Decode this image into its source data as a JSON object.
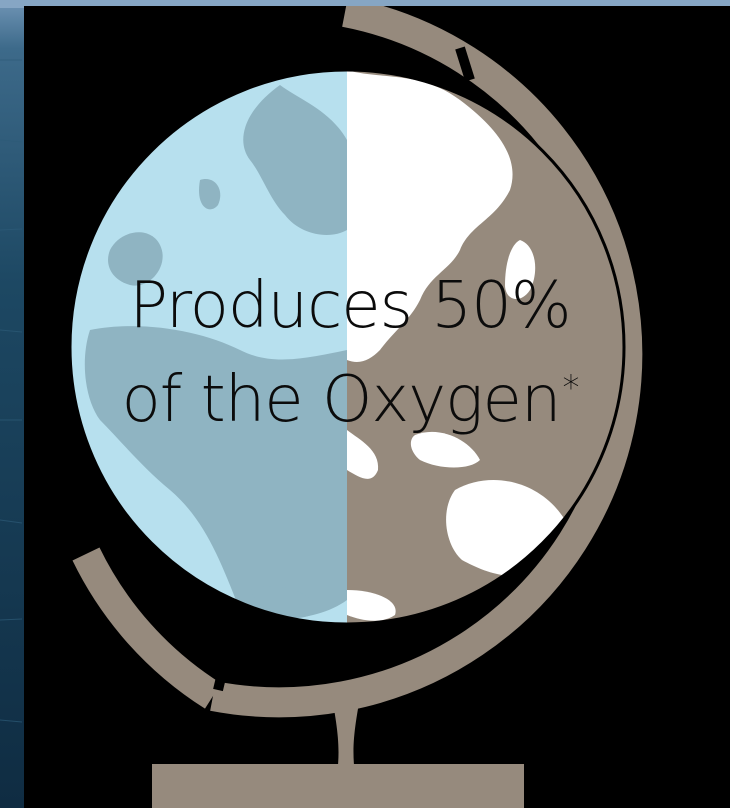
{
  "headline": {
    "line1": "Produces 50%",
    "line2": "of the Oxygen",
    "asterisk": "*"
  },
  "colors": {
    "background": "#000000",
    "ocean_light": "#6f93b5",
    "ocean_dark": "#14354f",
    "globe_ocean": "#b7e0ee",
    "globe_land_left": "#8fb4c2",
    "globe_brown": "#968a7d",
    "land_white": "#ffffff",
    "text": "#0b0b0b"
  },
  "icons": [
    "globe-icon"
  ]
}
